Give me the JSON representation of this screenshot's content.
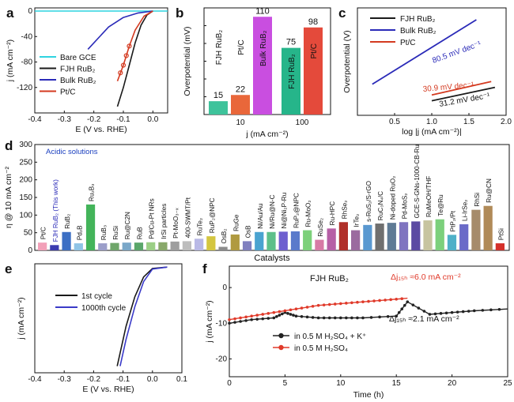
{
  "colors": {
    "bare": "#2fd3e0",
    "fjh": "#1a1a1a",
    "bulk": "#2a2ab8",
    "ptc": "#d43a20",
    "bar_ptc": "#e9673a",
    "bar_fjh": "#3ec39b",
    "bar_bulk": "#c94ee0",
    "bar_fjh_dark": "#26b58a",
    "bar_ptc_dark": "#e44a3b",
    "first_cycle": "#1a1a1a",
    "thousandth_cycle": "#3a3ac8",
    "stab_k": "#222222",
    "stab_h2so4": "#e03a2a",
    "acidic": "#1a3fbf"
  },
  "panel_labels": [
    "a",
    "b",
    "c",
    "d",
    "e",
    "f"
  ],
  "chart_data": [
    {
      "panel": "a",
      "type": "line",
      "xlabel": "E (V vs. RHE)",
      "ylabel": "j (mA cm⁻²)",
      "xlim": [
        -0.4,
        0.05
      ],
      "ylim": [
        -160,
        5
      ],
      "xticks": [
        "-0.4",
        "-0.3",
        "-0.2",
        "-0.1",
        "0.0"
      ],
      "yticks": [
        "0",
        "-40",
        "-80",
        "-120"
      ],
      "legend": [
        "Bare GCE",
        "FJH RuB₂",
        "Bulk RuB₂",
        "Pt/C"
      ],
      "series": [
        {
          "name": "Bare GCE",
          "x": [
            -0.4,
            0.05
          ],
          "y": [
            0,
            0
          ]
        },
        {
          "name": "FJH RuB₂",
          "x": [
            0.0,
            -0.02,
            -0.04,
            -0.06,
            -0.08,
            -0.1,
            -0.12
          ],
          "y": [
            0,
            -6,
            -22,
            -50,
            -85,
            -120,
            -150
          ]
        },
        {
          "name": "Bulk RuB₂",
          "x": [
            0.0,
            -0.05,
            -0.1,
            -0.15,
            -0.2,
            -0.22
          ],
          "y": [
            0,
            -3,
            -10,
            -25,
            -50,
            -60
          ]
        },
        {
          "name": "Pt/C",
          "x": [
            0.0,
            -0.03,
            -0.06,
            -0.08,
            -0.1,
            -0.12
          ],
          "y": [
            0,
            -8,
            -30,
            -55,
            -85,
            -110
          ]
        }
      ]
    },
    {
      "panel": "b",
      "type": "bar",
      "xlabel": "j (mA cm⁻²)",
      "ylabel": "Overpotential (mV)",
      "ylim": [
        0,
        120
      ],
      "yticks": [
        "0",
        "20",
        "40",
        "60",
        "80",
        "100",
        "120"
      ],
      "groups": [
        "10",
        "100"
      ],
      "bars": [
        {
          "group": "10",
          "label": "FJH RuB₂",
          "value": 15
        },
        {
          "group": "10",
          "label": "Pt/C",
          "value": 22
        },
        {
          "group": "10",
          "label": "Bulk RuB₂",
          "value": 110
        },
        {
          "group": "100",
          "label": "FJH RuB₂",
          "value": 75
        },
        {
          "group": "100",
          "label": "Pt/C",
          "value": 98
        }
      ]
    },
    {
      "panel": "c",
      "type": "line",
      "xlabel": "log |j (mA cm⁻²)|",
      "ylabel": "Overpotential (V)",
      "xlim": [
        0,
        2
      ],
      "ylim": [
        0,
        0.2
      ],
      "xticks": [
        "0.5",
        "1.0",
        "1.5",
        "2.0"
      ],
      "yticks": [],
      "legend": [
        "FJH RuB₂",
        "Bulk RuB₂",
        "Pt/C"
      ],
      "annotations": [
        "80.5 mV dec⁻¹",
        "30.9 mV dec⁻¹",
        "31.2 mV dec⁻¹"
      ],
      "series": [
        {
          "name": "Bulk RuB₂",
          "x": [
            0.2,
            1.6
          ],
          "y": [
            0.058,
            0.178
          ]
        },
        {
          "name": "Pt/C",
          "x": [
            1.0,
            1.8
          ],
          "y": [
            0.038,
            0.063
          ]
        },
        {
          "name": "FJH RuB₂",
          "x": [
            1.0,
            1.85
          ],
          "y": [
            0.027,
            0.052
          ]
        }
      ]
    },
    {
      "panel": "d",
      "type": "bar",
      "xlabel": "Catalysts",
      "ylabel": "η @ 10 mA cm⁻²",
      "ylim": [
        0,
        300
      ],
      "yticks": [
        "0",
        "50",
        "100",
        "150",
        "200",
        "250",
        "300"
      ],
      "annotation": "Acidic solutions",
      "categories": [
        "Pt/C",
        "FJH RuB₂ (This work)",
        "RuB₂",
        "Pd₂B",
        "Ru₂B₃",
        "RuB₃",
        "RuSi",
        "Ru@C2N",
        "RuB",
        "Pd/Cu-Pt NRs",
        "IrSi particles",
        "Pt-MoO₃₋ₓ",
        "400-SWMT/Pt",
        "RuTe₂",
        "RuP₂@NPC",
        "OsB₂",
        "RuGe",
        "OsB",
        "Ni/Au/Au",
        "Ni/Ru@N-C",
        "Ni@Ni₂P-Ru",
        "RuP₂@NPC",
        "Ru-MoO₂",
        "RuSe₂",
        "Ru-HPC",
        "RhSe₂",
        "IrTe₂",
        "s-RuS₂/S-rGO",
        "RuC₃N₄/C",
        "Ni-doped RuO₂",
        "Pd-MoS₂",
        "GCE-S-GNs-1000-CB-Ru",
        "RuMeOH/THF",
        "Te@Ru",
        "PtP₂/Pt",
        "Li-IrSe₂",
        "RhSi",
        "Ru@CN",
        "PtSi"
      ],
      "values": [
        22,
        15,
        52,
        20,
        130,
        20,
        21,
        22,
        22,
        23,
        23,
        25,
        26,
        33,
        40,
        10,
        45,
        26,
        52,
        52,
        53,
        54,
        57,
        30,
        62,
        80,
        57,
        72,
        76,
        78,
        80,
        82,
        85,
        88,
        44,
        74,
        115,
        126,
        20
      ]
    },
    {
      "panel": "e",
      "type": "line",
      "xlabel": "E (V vs. RHE)",
      "ylabel": "j (mA cm⁻²)",
      "xlim": [
        -0.4,
        0.1
      ],
      "ylim": [
        -160,
        5
      ],
      "xticks": [
        "-0.4",
        "-0.3",
        "-0.2",
        "-0.1",
        "0.0",
        "0.1"
      ],
      "yticks": [],
      "legend": [
        "1st cycle",
        "1000th cycle"
      ],
      "series": [
        {
          "name": "1st cycle",
          "x": [
            0.05,
            0.0,
            -0.03,
            -0.06,
            -0.09,
            -0.12
          ],
          "y": [
            0,
            -2,
            -15,
            -45,
            -90,
            -150
          ]
        },
        {
          "name": "1000th cycle",
          "x": [
            0.05,
            0.0,
            -0.03,
            -0.06,
            -0.09,
            -0.11
          ],
          "y": [
            0,
            -3,
            -22,
            -60,
            -110,
            -150
          ]
        }
      ]
    },
    {
      "panel": "f",
      "type": "line",
      "xlabel": "Time (h)",
      "ylabel": "j (mA cm⁻²)",
      "xlim": [
        0,
        25
      ],
      "ylim": [
        -25,
        6
      ],
      "xticks": [
        "0",
        "5",
        "10",
        "15",
        "20",
        "25"
      ],
      "yticks": [
        "0",
        "-10",
        "-20"
      ],
      "title": "FJH RuB₂",
      "annotations": [
        "Δj₁₅ₕ ≈6.0 mA cm⁻²",
        "Δj₁₅ₕ ≈2.1 mA cm⁻²"
      ],
      "legend": [
        "in 0.5 M H₂SO₄ + K⁺",
        "in 0.5 M H₂SO₄"
      ],
      "series": [
        {
          "name": "in 0.5 M H₂SO₄ + K⁺",
          "x": [
            0,
            2,
            4,
            5,
            6,
            8,
            10,
            12,
            15,
            16,
            18,
            20,
            22,
            25
          ],
          "y": [
            -10,
            -9,
            -8.5,
            -7,
            -8,
            -8.5,
            -8.5,
            -8.5,
            -8,
            -4,
            -7.5,
            -7,
            -6.5,
            -6
          ]
        },
        {
          "name": "in 0.5 M H₂SO₄",
          "x": [
            0,
            2,
            4,
            6,
            8,
            10,
            12,
            14,
            16
          ],
          "y": [
            -9,
            -8,
            -7,
            -6,
            -5,
            -4.5,
            -4,
            -3.5,
            -3
          ]
        }
      ]
    }
  ]
}
